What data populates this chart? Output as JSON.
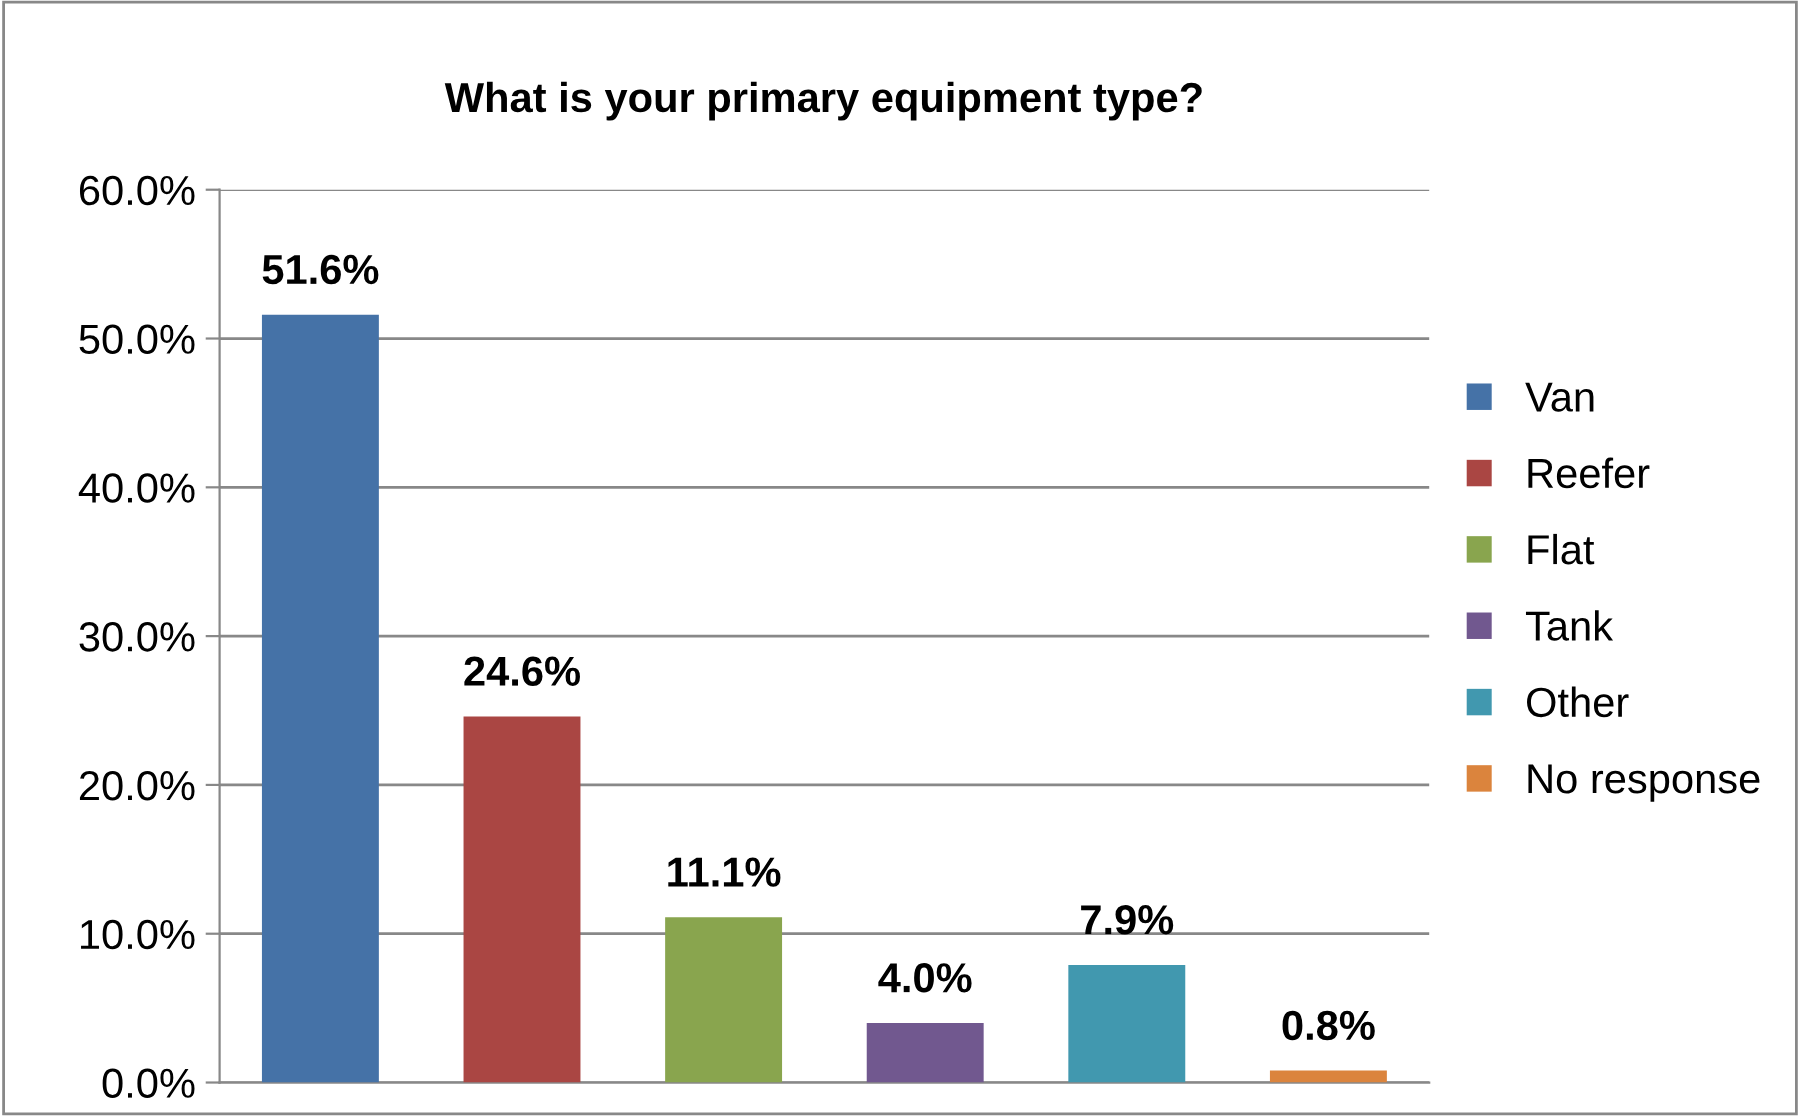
{
  "chart_data": {
    "type": "bar",
    "title": "What is your primary equipment type?",
    "categories": [
      null,
      null,
      null,
      null,
      null,
      null
    ],
    "series": [
      {
        "name": "Van",
        "color": "#4572a7",
        "values": [
          51.6,
          null,
          null,
          null,
          null,
          null
        ]
      },
      {
        "name": "Reefer",
        "color": "#aa4643",
        "values": [
          null,
          24.6,
          null,
          null,
          null,
          null
        ]
      },
      {
        "name": "Flat",
        "color": "#89a54e",
        "values": [
          null,
          null,
          11.1,
          null,
          null,
          null
        ]
      },
      {
        "name": "Tank",
        "color": "#71588f",
        "values": [
          null,
          null,
          null,
          4.0,
          null,
          null
        ]
      },
      {
        "name": "Other",
        "color": "#4198af",
        "values": [
          null,
          null,
          null,
          null,
          7.9,
          null
        ]
      },
      {
        "name": "No response",
        "color": "#db843d",
        "values": [
          null,
          null,
          null,
          null,
          null,
          0.8
        ]
      }
    ],
    "value_labels": [
      "51.6%",
      "24.6%",
      "11.1%",
      "4.0%",
      "7.9%",
      "0.8%"
    ],
    "ylim": [
      0,
      60
    ],
    "yticks": [
      {
        "value": 0,
        "label": "0.0%"
      },
      {
        "value": 10,
        "label": "10.0%"
      },
      {
        "value": 20,
        "label": "20.0%"
      },
      {
        "value": 30,
        "label": "30.0%"
      },
      {
        "value": 40,
        "label": "40.0%"
      },
      {
        "value": 50,
        "label": "50.0%"
      },
      {
        "value": 60,
        "label": "60.0%"
      }
    ],
    "grid": "y",
    "legend": "right"
  }
}
